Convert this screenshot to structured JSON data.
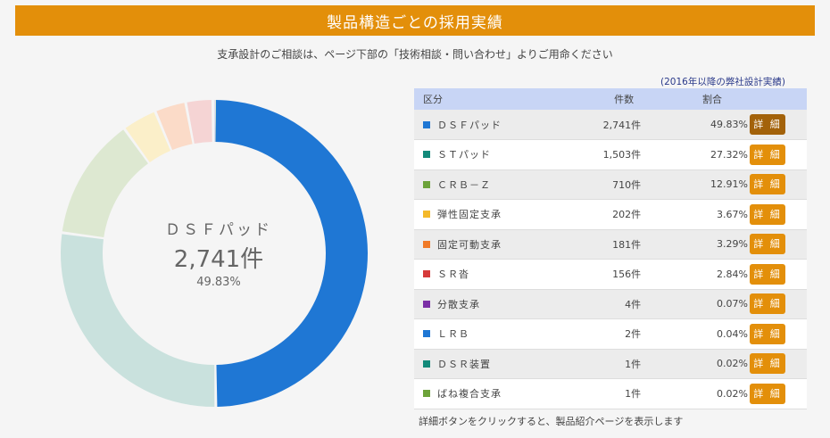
{
  "title": "製品構造ごとの採用実績",
  "subtitle": "支承設計のご相談は、ページ下部の「技術相談・問い合わせ」よりご用命ください",
  "note": "(2016年以降の弊社設計実績)",
  "table": {
    "headers": [
      "区分",
      "件数",
      "割合"
    ],
    "detail_label": "詳 細",
    "rows": [
      {
        "name": "ＤＳＦパッド",
        "count": "2,741件",
        "pct": "49.83%",
        "color": "#1f77d4",
        "active": true
      },
      {
        "name": "ＳＴパッド",
        "count": "1,503件",
        "pct": "27.32%",
        "color": "#138a7a",
        "active": false
      },
      {
        "name": "ＣＲＢ－Ｚ",
        "count": "710件",
        "pct": "12.91%",
        "color": "#6ca33a",
        "active": false
      },
      {
        "name": "弾性固定支承",
        "count": "202件",
        "pct": "3.67%",
        "color": "#f4b92a",
        "active": false
      },
      {
        "name": "固定可動支承",
        "count": "181件",
        "pct": "3.29%",
        "color": "#f07a28",
        "active": false
      },
      {
        "name": "ＳＲ沓",
        "count": "156件",
        "pct": "2.84%",
        "color": "#d63a3a",
        "active": false
      },
      {
        "name": "分散支承",
        "count": "4件",
        "pct": "0.07%",
        "color": "#7b2fa6",
        "active": false
      },
      {
        "name": "ＬＲＢ",
        "count": "2件",
        "pct": "0.04%",
        "color": "#1f77d4",
        "active": false
      },
      {
        "name": "ＤＳＲ装置",
        "count": "1件",
        "pct": "0.02%",
        "color": "#138a7a",
        "active": false
      },
      {
        "name": "ばね複合支承",
        "count": "1件",
        "pct": "0.02%",
        "color": "#6ca33a",
        "active": false
      }
    ]
  },
  "center": {
    "name": "ＤＳＦパッド",
    "count": "2,741件",
    "pct": "49.83%"
  },
  "footer_note": "詳細ボタンをクリックすると、製品紹介ページを表示します",
  "chart_data": {
    "type": "pie",
    "donut": true,
    "highlighted": "ＤＳＦパッド",
    "categories": [
      "ＤＳＦパッド",
      "ＳＴパッド",
      "ＣＲＢ－Ｚ",
      "弾性固定支承",
      "固定可動支承",
      "ＳＲ沓",
      "分散支承",
      "ＬＲＢ",
      "ＤＳＲ装置",
      "ばね複合支承"
    ],
    "values": [
      2741,
      1503,
      710,
      202,
      181,
      156,
      4,
      2,
      1,
      1
    ],
    "percentages": [
      49.83,
      27.32,
      12.91,
      3.67,
      3.29,
      2.84,
      0.07,
      0.04,
      0.02,
      0.02
    ],
    "slice_colors": [
      "#1f77d4",
      "#c9e1dd",
      "#dde8d1",
      "#fbefc9",
      "#fbdbc8",
      "#f5d4d4",
      "#e5d6ee",
      "#d0e2f6",
      "#c9e1dd",
      "#dde8d1"
    ]
  }
}
